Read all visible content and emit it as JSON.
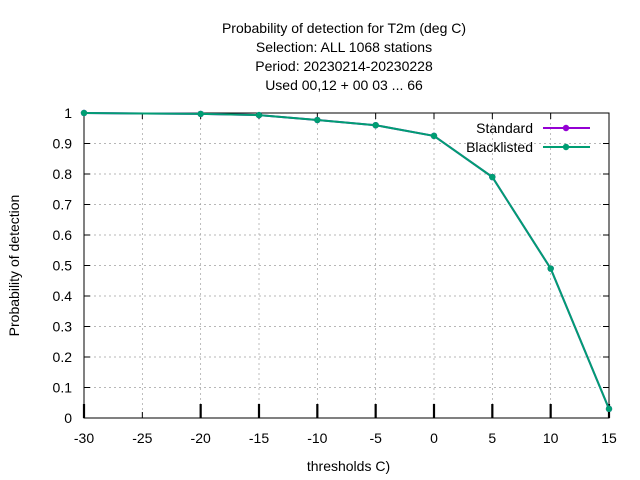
{
  "chart_data": {
    "type": "line",
    "title_lines": [
      "Probability of detection  for T2m (deg C)",
      "Selection: ALL   1068 stations",
      "Period: 20230214-20230228",
      "Used  00,12  + 00 03 ... 66"
    ],
    "xlabel": "thresholds C)",
    "ylabel": "Probability of detection",
    "xlim": [
      -30,
      15
    ],
    "ylim": [
      0,
      1
    ],
    "x_ticks": [
      -30,
      -25,
      -20,
      -15,
      -10,
      -5,
      0,
      5,
      10,
      15
    ],
    "x_tick_labels": [
      "-30",
      "-25",
      "-20",
      "-15",
      "-10",
      "-5",
      "0",
      "5",
      "10",
      "15"
    ],
    "y_ticks": [
      0,
      0.1,
      0.2,
      0.3,
      0.4,
      0.5,
      0.6,
      0.7,
      0.8,
      0.9,
      1
    ],
    "y_tick_labels": [
      "0",
      "0.1",
      "0.2",
      "0.3",
      "0.4",
      "0.5",
      "0.6",
      "0.7",
      "0.8",
      "0.9",
      "1"
    ],
    "grid": true,
    "legend_position": "top-right",
    "x": [
      -30,
      -20,
      -15,
      -10,
      -5,
      0,
      5,
      10,
      15
    ],
    "series": [
      {
        "name": "Standard",
        "color": "#9400d3",
        "values": [
          1.0,
          0.997,
          0.993,
          0.977,
          0.96,
          0.925,
          0.79,
          0.49,
          0.03
        ]
      },
      {
        "name": "Blacklisted",
        "color": "#009e73",
        "values": [
          1.0,
          0.997,
          0.993,
          0.977,
          0.96,
          0.925,
          0.79,
          0.49,
          0.03
        ]
      }
    ]
  }
}
